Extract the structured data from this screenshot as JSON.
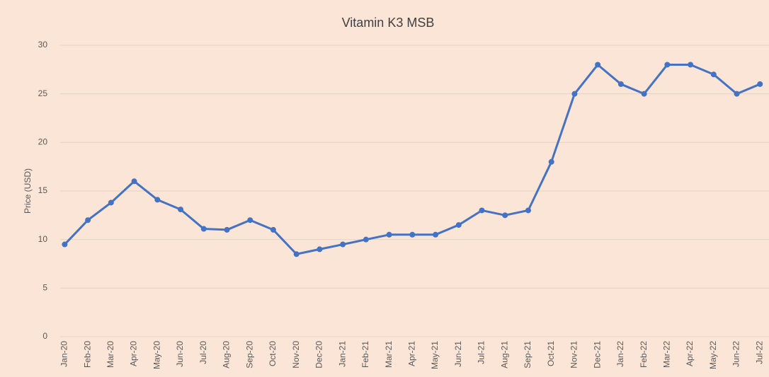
{
  "chart_data": {
    "type": "line",
    "title": "Vitamin K3 MSB",
    "y_label": "Price (USD)",
    "categories": [
      "Jan-20",
      "Feb-20",
      "Mar-20",
      "Apr-20",
      "May-20",
      "Jun-20",
      "Jul-20",
      "Aug-20",
      "Sep-20",
      "Oct-20",
      "Nov-20",
      "Dec-20",
      "Jan-21",
      "Feb-21",
      "Mar-21",
      "Apr-21",
      "May-21",
      "Jun-21",
      "Jul-21",
      "Aug-21",
      "Sep-21",
      "Oct-21",
      "Nov-21",
      "Dec-21",
      "Jan-22",
      "Feb-22",
      "Mar-22",
      "Apr-22",
      "May-22",
      "Jun-22",
      "Jul-22"
    ],
    "values": [
      9.5,
      12,
      13.8,
      16,
      14.1,
      13.1,
      11.1,
      11,
      12,
      11,
      8.5,
      9,
      9.5,
      10,
      10.5,
      10.5,
      10.5,
      11.5,
      13,
      12.5,
      13,
      18,
      25,
      28,
      26,
      25,
      28,
      28,
      27,
      25,
      26
    ],
    "color": "#4472c4",
    "ylim": [
      0,
      30
    ],
    "yticks": [
      0,
      5,
      10,
      15,
      20,
      25,
      30
    ],
    "grid": true
  }
}
